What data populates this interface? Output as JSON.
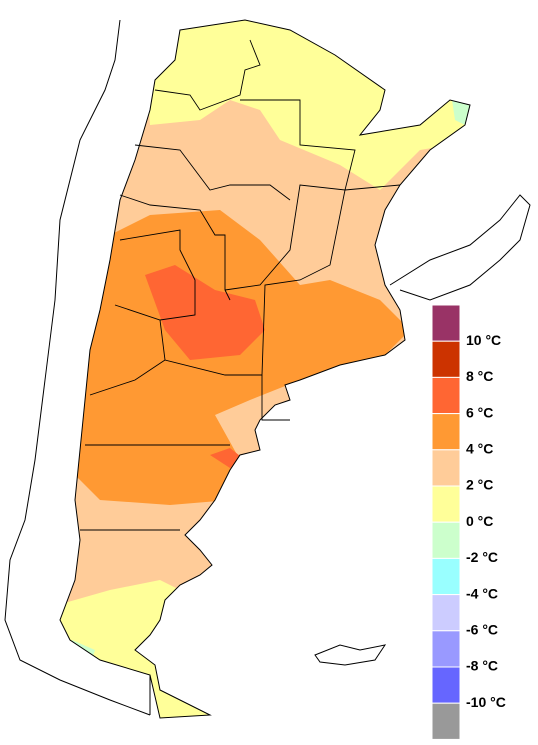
{
  "legend": {
    "colors": [
      "#993366",
      "#cc3300",
      "#ff6633",
      "#ff9933",
      "#ffcc99",
      "#ffff99",
      "#ccffcc",
      "#99ffff",
      "#ccccff",
      "#9999ff",
      "#6666ff",
      "#999999"
    ],
    "labels": [
      "10 °C",
      "8 °C",
      "6 °C",
      "4 °C",
      "2 °C",
      "0 °C",
      "-2 °C",
      "-4 °C",
      "-6 °C",
      "-8 °C",
      "-10 °C"
    ]
  }
}
